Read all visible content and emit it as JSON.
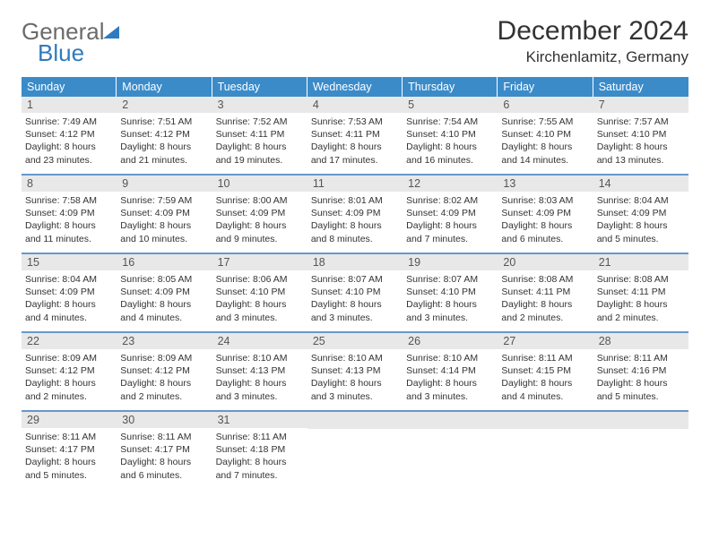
{
  "logo": {
    "part1": "General",
    "part2": "Blue"
  },
  "header": {
    "month_title": "December 2024",
    "location": "Kirchenlamitz, Germany"
  },
  "colors": {
    "dow_bg": "#3b8bc9",
    "dow_text": "#ffffff",
    "daynum_bg": "#e8e8e8",
    "week_divider": "#6699cc",
    "body_text": "#333333",
    "logo_gray": "#6b6b6b",
    "logo_blue": "#2f7bbf"
  },
  "typography": {
    "month_title_size_pt": 30,
    "location_size_pt": 17,
    "dow_size_pt": 12.5,
    "cell_size_pt": 10.5
  },
  "days_of_week": [
    "Sunday",
    "Monday",
    "Tuesday",
    "Wednesday",
    "Thursday",
    "Friday",
    "Saturday"
  ],
  "weeks": [
    [
      {
        "n": "1",
        "sunrise": "Sunrise: 7:49 AM",
        "sunset": "Sunset: 4:12 PM",
        "day1": "Daylight: 8 hours",
        "day2": "and 23 minutes."
      },
      {
        "n": "2",
        "sunrise": "Sunrise: 7:51 AM",
        "sunset": "Sunset: 4:12 PM",
        "day1": "Daylight: 8 hours",
        "day2": "and 21 minutes."
      },
      {
        "n": "3",
        "sunrise": "Sunrise: 7:52 AM",
        "sunset": "Sunset: 4:11 PM",
        "day1": "Daylight: 8 hours",
        "day2": "and 19 minutes."
      },
      {
        "n": "4",
        "sunrise": "Sunrise: 7:53 AM",
        "sunset": "Sunset: 4:11 PM",
        "day1": "Daylight: 8 hours",
        "day2": "and 17 minutes."
      },
      {
        "n": "5",
        "sunrise": "Sunrise: 7:54 AM",
        "sunset": "Sunset: 4:10 PM",
        "day1": "Daylight: 8 hours",
        "day2": "and 16 minutes."
      },
      {
        "n": "6",
        "sunrise": "Sunrise: 7:55 AM",
        "sunset": "Sunset: 4:10 PM",
        "day1": "Daylight: 8 hours",
        "day2": "and 14 minutes."
      },
      {
        "n": "7",
        "sunrise": "Sunrise: 7:57 AM",
        "sunset": "Sunset: 4:10 PM",
        "day1": "Daylight: 8 hours",
        "day2": "and 13 minutes."
      }
    ],
    [
      {
        "n": "8",
        "sunrise": "Sunrise: 7:58 AM",
        "sunset": "Sunset: 4:09 PM",
        "day1": "Daylight: 8 hours",
        "day2": "and 11 minutes."
      },
      {
        "n": "9",
        "sunrise": "Sunrise: 7:59 AM",
        "sunset": "Sunset: 4:09 PM",
        "day1": "Daylight: 8 hours",
        "day2": "and 10 minutes."
      },
      {
        "n": "10",
        "sunrise": "Sunrise: 8:00 AM",
        "sunset": "Sunset: 4:09 PM",
        "day1": "Daylight: 8 hours",
        "day2": "and 9 minutes."
      },
      {
        "n": "11",
        "sunrise": "Sunrise: 8:01 AM",
        "sunset": "Sunset: 4:09 PM",
        "day1": "Daylight: 8 hours",
        "day2": "and 8 minutes."
      },
      {
        "n": "12",
        "sunrise": "Sunrise: 8:02 AM",
        "sunset": "Sunset: 4:09 PM",
        "day1": "Daylight: 8 hours",
        "day2": "and 7 minutes."
      },
      {
        "n": "13",
        "sunrise": "Sunrise: 8:03 AM",
        "sunset": "Sunset: 4:09 PM",
        "day1": "Daylight: 8 hours",
        "day2": "and 6 minutes."
      },
      {
        "n": "14",
        "sunrise": "Sunrise: 8:04 AM",
        "sunset": "Sunset: 4:09 PM",
        "day1": "Daylight: 8 hours",
        "day2": "and 5 minutes."
      }
    ],
    [
      {
        "n": "15",
        "sunrise": "Sunrise: 8:04 AM",
        "sunset": "Sunset: 4:09 PM",
        "day1": "Daylight: 8 hours",
        "day2": "and 4 minutes."
      },
      {
        "n": "16",
        "sunrise": "Sunrise: 8:05 AM",
        "sunset": "Sunset: 4:09 PM",
        "day1": "Daylight: 8 hours",
        "day2": "and 4 minutes."
      },
      {
        "n": "17",
        "sunrise": "Sunrise: 8:06 AM",
        "sunset": "Sunset: 4:10 PM",
        "day1": "Daylight: 8 hours",
        "day2": "and 3 minutes."
      },
      {
        "n": "18",
        "sunrise": "Sunrise: 8:07 AM",
        "sunset": "Sunset: 4:10 PM",
        "day1": "Daylight: 8 hours",
        "day2": "and 3 minutes."
      },
      {
        "n": "19",
        "sunrise": "Sunrise: 8:07 AM",
        "sunset": "Sunset: 4:10 PM",
        "day1": "Daylight: 8 hours",
        "day2": "and 3 minutes."
      },
      {
        "n": "20",
        "sunrise": "Sunrise: 8:08 AM",
        "sunset": "Sunset: 4:11 PM",
        "day1": "Daylight: 8 hours",
        "day2": "and 2 minutes."
      },
      {
        "n": "21",
        "sunrise": "Sunrise: 8:08 AM",
        "sunset": "Sunset: 4:11 PM",
        "day1": "Daylight: 8 hours",
        "day2": "and 2 minutes."
      }
    ],
    [
      {
        "n": "22",
        "sunrise": "Sunrise: 8:09 AM",
        "sunset": "Sunset: 4:12 PM",
        "day1": "Daylight: 8 hours",
        "day2": "and 2 minutes."
      },
      {
        "n": "23",
        "sunrise": "Sunrise: 8:09 AM",
        "sunset": "Sunset: 4:12 PM",
        "day1": "Daylight: 8 hours",
        "day2": "and 2 minutes."
      },
      {
        "n": "24",
        "sunrise": "Sunrise: 8:10 AM",
        "sunset": "Sunset: 4:13 PM",
        "day1": "Daylight: 8 hours",
        "day2": "and 3 minutes."
      },
      {
        "n": "25",
        "sunrise": "Sunrise: 8:10 AM",
        "sunset": "Sunset: 4:13 PM",
        "day1": "Daylight: 8 hours",
        "day2": "and 3 minutes."
      },
      {
        "n": "26",
        "sunrise": "Sunrise: 8:10 AM",
        "sunset": "Sunset: 4:14 PM",
        "day1": "Daylight: 8 hours",
        "day2": "and 3 minutes."
      },
      {
        "n": "27",
        "sunrise": "Sunrise: 8:11 AM",
        "sunset": "Sunset: 4:15 PM",
        "day1": "Daylight: 8 hours",
        "day2": "and 4 minutes."
      },
      {
        "n": "28",
        "sunrise": "Sunrise: 8:11 AM",
        "sunset": "Sunset: 4:16 PM",
        "day1": "Daylight: 8 hours",
        "day2": "and 5 minutes."
      }
    ],
    [
      {
        "n": "29",
        "sunrise": "Sunrise: 8:11 AM",
        "sunset": "Sunset: 4:17 PM",
        "day1": "Daylight: 8 hours",
        "day2": "and 5 minutes."
      },
      {
        "n": "30",
        "sunrise": "Sunrise: 8:11 AM",
        "sunset": "Sunset: 4:17 PM",
        "day1": "Daylight: 8 hours",
        "day2": "and 6 minutes."
      },
      {
        "n": "31",
        "sunrise": "Sunrise: 8:11 AM",
        "sunset": "Sunset: 4:18 PM",
        "day1": "Daylight: 8 hours",
        "day2": "and 7 minutes."
      },
      {
        "empty": true
      },
      {
        "empty": true
      },
      {
        "empty": true
      },
      {
        "empty": true
      }
    ]
  ]
}
